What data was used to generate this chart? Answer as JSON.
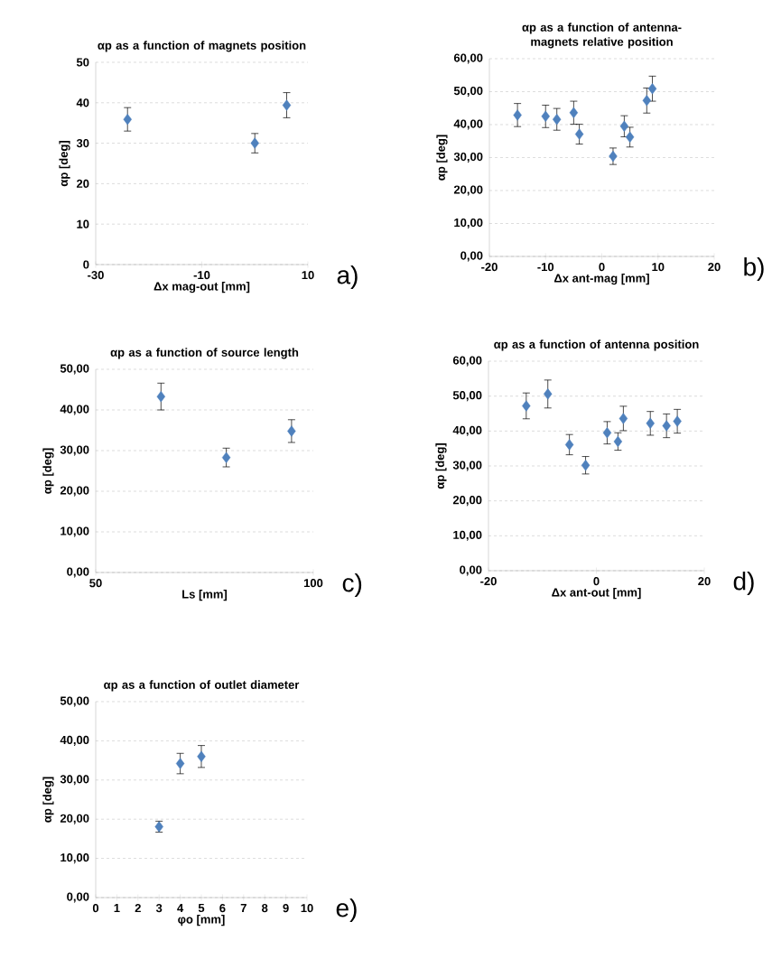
{
  "chart_data": [
    {
      "type": "scatter",
      "title": "αp as a function of magnets position",
      "xlabel": "Δx mag-out [mm]",
      "ylabel": "αp [deg]",
      "color": "#4f81bd",
      "marker": "diamond",
      "grid": "y",
      "annotations": [
        "a)"
      ],
      "x": [
        -24,
        0,
        6
      ],
      "values": [
        35.9,
        30,
        39.4
      ],
      "errors": [
        2.9,
        2.4,
        3.1
      ],
      "xlim": [
        -30,
        10
      ],
      "xticks": [
        -30,
        -10,
        10
      ],
      "ylim": [
        0,
        50
      ],
      "yticks": [
        0,
        10,
        20,
        30,
        40,
        50
      ]
    },
    {
      "type": "scatter",
      "title": "αp as a function of antenna-magnets relative position",
      "xlabel": "Δx ant-mag [mm]",
      "ylabel": "αp [deg]",
      "color": "#4f81bd",
      "marker": "diamond",
      "grid": "y",
      "annotations": [
        "b)"
      ],
      "x": [
        -15,
        -10,
        -8,
        -5,
        -4,
        2,
        4,
        5,
        8,
        9
      ],
      "values": [
        42.9,
        42.5,
        41.6,
        43.6,
        37.1,
        30.4,
        39.5,
        36.2,
        47.3,
        50.9
      ],
      "errors": [
        3.5,
        3.4,
        3.3,
        3.5,
        3,
        2.5,
        3.2,
        3,
        3.8,
        3.8
      ],
      "xlim": [
        -20,
        20
      ],
      "xticks": [
        -20,
        -10,
        0,
        10,
        20
      ],
      "ylim": [
        0,
        60
      ],
      "yticks": [
        {
          "value": 0,
          "label": "0,00"
        },
        {
          "value": 10,
          "label": "10,00"
        },
        {
          "value": 20,
          "label": "20,00"
        },
        {
          "value": 30,
          "label": "30,00"
        },
        {
          "value": 40,
          "label": "40,00"
        },
        {
          "value": 50,
          "label": "50,00"
        },
        {
          "value": 60,
          "label": "60,00"
        }
      ]
    },
    {
      "type": "scatter",
      "title": "αp as a function of source length",
      "xlabel": "Ls [mm]",
      "ylabel": "αp [deg]",
      "color": "#4f81bd",
      "marker": "diamond",
      "grid": "y",
      "annotations": [
        "c)"
      ],
      "x": [
        65,
        80,
        95
      ],
      "values": [
        43.3,
        28.3,
        34.8
      ],
      "errors": [
        3.3,
        2.3,
        2.8
      ],
      "xlim": [
        50,
        100
      ],
      "xticks": [
        50,
        100
      ],
      "ylim": [
        0,
        50
      ],
      "yticks": [
        {
          "value": 0,
          "label": "0,00"
        },
        {
          "value": 10,
          "label": "10,00"
        },
        {
          "value": 20,
          "label": "20,00"
        },
        {
          "value": 30,
          "label": "30,00"
        },
        {
          "value": 40,
          "label": "40,00"
        },
        {
          "value": 50,
          "label": "50,00"
        }
      ]
    },
    {
      "type": "scatter",
      "title": "αp as a function of antenna position",
      "xlabel": "Δx ant-out [mm]",
      "ylabel": "αp [deg]",
      "color": "#4f81bd",
      "marker": "diamond",
      "grid": "y",
      "annotations": [
        "d)"
      ],
      "x": [
        -13,
        -9,
        -5,
        -2,
        2,
        4,
        5,
        10,
        13,
        15
      ],
      "values": [
        47.2,
        50.6,
        36.1,
        30.2,
        39.5,
        37,
        43.6,
        42.2,
        41.5,
        42.8
      ],
      "errors": [
        3.7,
        4,
        2.9,
        2.5,
        3.2,
        2.5,
        3.5,
        3.4,
        3.4,
        3.4
      ],
      "xlim": [
        -20,
        20
      ],
      "xticks": [
        -20,
        0,
        20
      ],
      "ylim": [
        0,
        60
      ],
      "yticks": [
        {
          "value": 0,
          "label": "0,00"
        },
        {
          "value": 10,
          "label": "10,00"
        },
        {
          "value": 20,
          "label": "20,00"
        },
        {
          "value": 30,
          "label": "30,00"
        },
        {
          "value": 40,
          "label": "40,00"
        },
        {
          "value": 50,
          "label": "50,00"
        },
        {
          "value": 60,
          "label": "60,00"
        }
      ]
    },
    {
      "type": "scatter",
      "title": "αp as a function of outlet diameter",
      "xlabel": "φo [mm]",
      "ylabel": "αp [deg]",
      "color": "#4f81bd",
      "marker": "diamond",
      "grid": "y",
      "annotations": [
        "e)"
      ],
      "x": [
        3,
        4,
        5
      ],
      "values": [
        18.1,
        34.2,
        36
      ],
      "errors": [
        1.4,
        2.6,
        2.8
      ],
      "xlim": [
        0,
        10
      ],
      "xticks": [
        0,
        1,
        2,
        3,
        4,
        5,
        6,
        7,
        8,
        9,
        10
      ],
      "ylim": [
        0,
        50
      ],
      "yticks": [
        {
          "value": 0,
          "label": "0,00"
        },
        {
          "value": 10,
          "label": "10,00"
        },
        {
          "value": 20,
          "label": "20,00"
        },
        {
          "value": 30,
          "label": "30,00"
        },
        {
          "value": 40,
          "label": "40,00"
        },
        {
          "value": 50,
          "label": "50,00"
        }
      ]
    }
  ]
}
